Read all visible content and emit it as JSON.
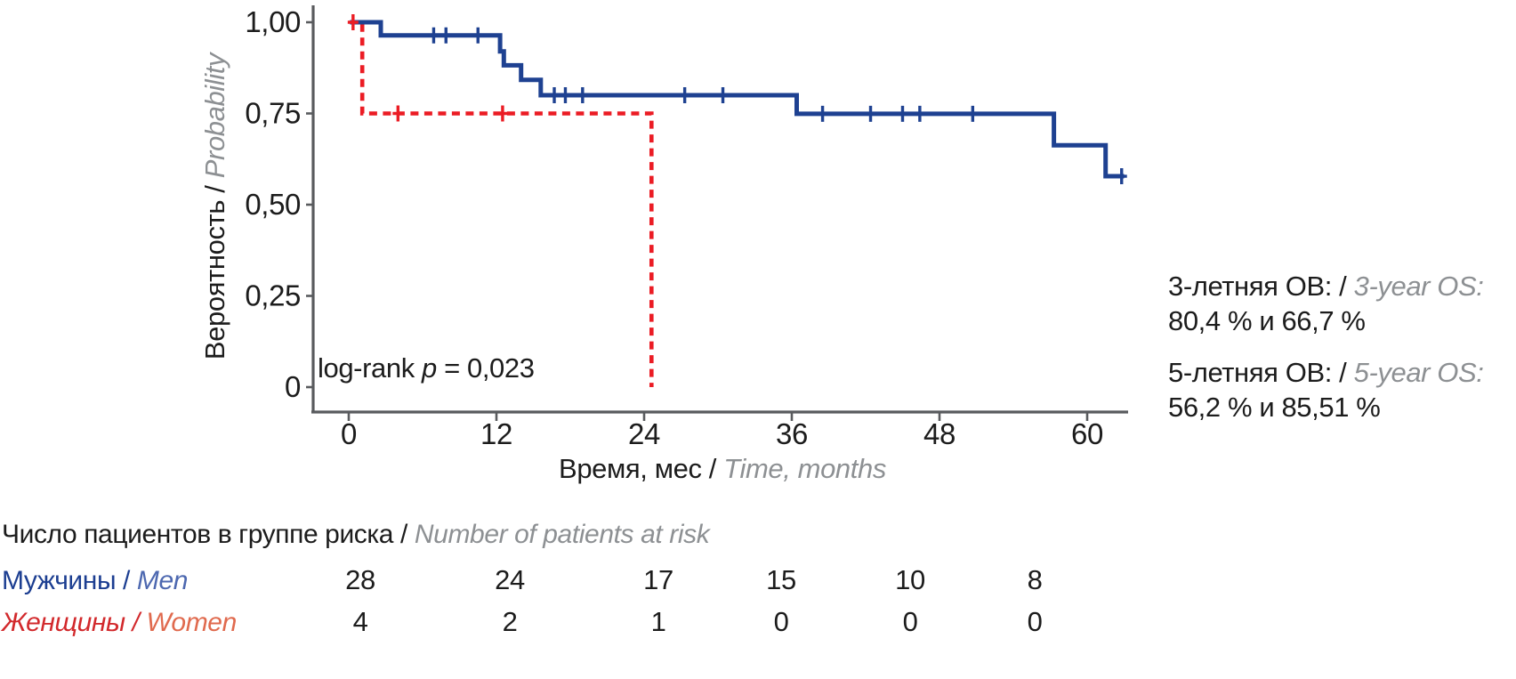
{
  "page": {
    "background": "#ffffff"
  },
  "colors": {
    "axis": "#595b5e",
    "text_black": "#1c1c1c",
    "text_gray": "#8d9093",
    "men_curve": "#1e4191",
    "women_curve": "#eb1c24"
  },
  "chart_data": {
    "type": "line",
    "variant": "kaplan_meier_step_survival",
    "x_axis": {
      "label_ru": "Время, мес /",
      "label_en": " Time, months",
      "ticks": [
        0,
        12,
        24,
        36,
        48,
        60
      ],
      "range_months": [
        0,
        63
      ]
    },
    "y_axis": {
      "label_ru": "Вероятность /",
      "label_en": " Probability",
      "ticks": [
        {
          "value": 1.0,
          "label": "1,00"
        },
        {
          "value": 0.75,
          "label": "0,75"
        },
        {
          "value": 0.5,
          "label": "0,50"
        },
        {
          "value": 0.25,
          "label": "0,25"
        },
        {
          "value": 0,
          "label": "0"
        }
      ],
      "range": [
        0,
        1.0
      ]
    },
    "series": [
      {
        "id": "men",
        "name_ru": "Мужчины /",
        "name_en": " Men",
        "color": "#1e4191",
        "line": "solid",
        "steps_month_probability": [
          [
            0.1,
            1.0
          ],
          [
            2.6,
            0.964
          ],
          [
            12.3,
            0.92
          ],
          [
            12.6,
            0.882
          ],
          [
            14.0,
            0.842
          ],
          [
            15.6,
            0.8
          ],
          [
            36.4,
            0.749
          ],
          [
            57.3,
            0.663
          ],
          [
            61.5,
            0.578
          ],
          [
            63.0,
            0.578
          ]
        ],
        "censor_marks_month_probability": [
          [
            6.9,
            0.964
          ],
          [
            7.9,
            0.964
          ],
          [
            10.5,
            0.964
          ],
          [
            16.7,
            0.8
          ],
          [
            17.6,
            0.8
          ],
          [
            19.0,
            0.8
          ],
          [
            27.3,
            0.8
          ],
          [
            30.4,
            0.8
          ],
          [
            38.5,
            0.749
          ],
          [
            42.4,
            0.749
          ],
          [
            45.0,
            0.749
          ],
          [
            46.4,
            0.749
          ],
          [
            50.7,
            0.749
          ],
          [
            62.8,
            0.578
          ]
        ]
      },
      {
        "id": "women",
        "name_ru": "Женщины /",
        "name_en": " Women",
        "color": "#eb1c24",
        "line": "dashed",
        "steps_month_probability": [
          [
            0.1,
            1.0
          ],
          [
            1.1,
            0.75
          ],
          [
            24.6,
            0.0
          ]
        ],
        "censor_marks_month_probability": [
          [
            0.35,
            1.0
          ],
          [
            4.0,
            0.75
          ],
          [
            12.5,
            0.75
          ]
        ]
      }
    ],
    "annotations": {
      "log_rank": {
        "prefix": "log-rank ",
        "stat": "p",
        "value": " = 0,023"
      },
      "os_3yr": {
        "ru": "3-летняя ОВ: /",
        "en": " 3-year OS:",
        "values": "80,4 % и 66,7 %"
      },
      "os_5yr": {
        "ru": "5-летняя ОВ: /",
        "en": " 5-year OS:",
        "values": "56,2 % и 85,51 %"
      }
    },
    "legend_position": "none",
    "grid": false
  },
  "risk_table": {
    "header_ru": "Число пациентов в группе риска /",
    "header_en": " Number of patients at risk",
    "rows": [
      {
        "series": "men",
        "label_ru": "Мужчины /",
        "label_en": " Men",
        "label_color": "#1c3e91",
        "label_en_color": "#4d68b0",
        "counts": [
          "28",
          "24",
          "17",
          "15",
          "10",
          "8"
        ]
      },
      {
        "series": "women",
        "label_ru": "Женщины /",
        "label_en": " Women",
        "label_color": "#d2292c",
        "label_en_color": "#e06a4e",
        "counts": [
          "4",
          "2",
          "1",
          "0",
          "0",
          "0"
        ]
      }
    ]
  }
}
